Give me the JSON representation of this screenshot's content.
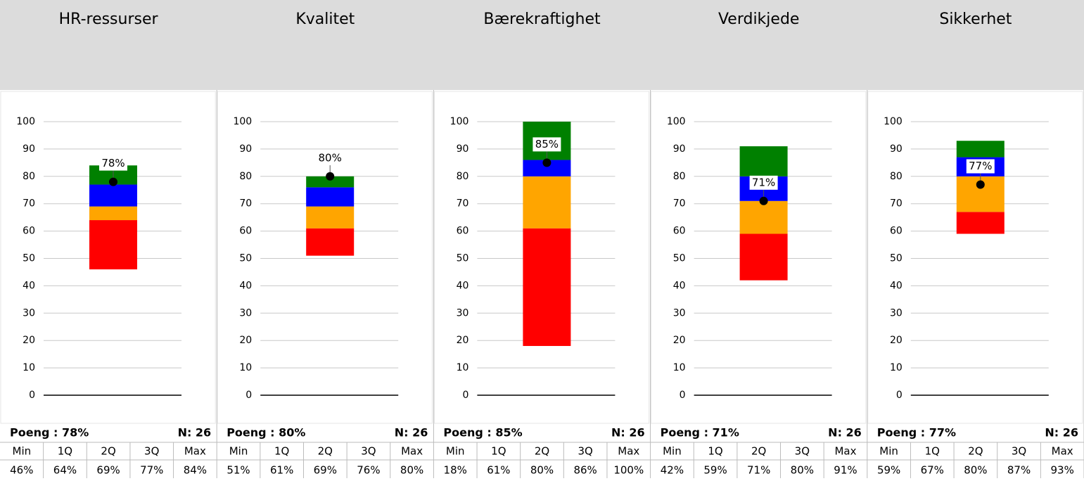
{
  "chart_data": [
    {
      "type": "box",
      "title": "HR-ressurser",
      "ylim": [
        0,
        100
      ],
      "yticks": [
        0,
        10,
        20,
        30,
        40,
        50,
        60,
        70,
        80,
        90,
        100
      ],
      "colors": [
        "#ff0000",
        "#ffa500",
        "#0000ff",
        "#008000"
      ],
      "stat_names": [
        "Min",
        "1Q",
        "2Q",
        "3Q",
        "Max"
      ],
      "values": [
        46,
        64,
        69,
        77,
        84
      ],
      "value_labels": [
        "46%",
        "64%",
        "69%",
        "77%",
        "84%"
      ],
      "score": 78,
      "score_label": "78%",
      "footer_score": "Poeng : 78%",
      "footer_n": "N: 26"
    },
    {
      "type": "box",
      "title": "Kvalitet",
      "ylim": [
        0,
        100
      ],
      "yticks": [
        0,
        10,
        20,
        30,
        40,
        50,
        60,
        70,
        80,
        90,
        100
      ],
      "colors": [
        "#ff0000",
        "#ffa500",
        "#0000ff",
        "#008000"
      ],
      "stat_names": [
        "Min",
        "1Q",
        "2Q",
        "3Q",
        "Max"
      ],
      "values": [
        51,
        61,
        69,
        76,
        80
      ],
      "value_labels": [
        "51%",
        "61%",
        "69%",
        "76%",
        "80%"
      ],
      "score": 80,
      "score_label": "80%",
      "footer_score": "Poeng : 80%",
      "footer_n": "N: 26"
    },
    {
      "type": "box",
      "title": "Bærekraftighet",
      "ylim": [
        0,
        100
      ],
      "yticks": [
        0,
        10,
        20,
        30,
        40,
        50,
        60,
        70,
        80,
        90,
        100
      ],
      "colors": [
        "#ff0000",
        "#ffa500",
        "#0000ff",
        "#008000"
      ],
      "stat_names": [
        "Min",
        "1Q",
        "2Q",
        "3Q",
        "Max"
      ],
      "values": [
        18,
        61,
        80,
        86,
        100
      ],
      "value_labels": [
        "18%",
        "61%",
        "80%",
        "86%",
        "100%"
      ],
      "score": 85,
      "score_label": "85%",
      "footer_score": "Poeng : 85%",
      "footer_n": "N: 26"
    },
    {
      "type": "box",
      "title": "Verdikjede",
      "ylim": [
        0,
        100
      ],
      "yticks": [
        0,
        10,
        20,
        30,
        40,
        50,
        60,
        70,
        80,
        90,
        100
      ],
      "colors": [
        "#ff0000",
        "#ffa500",
        "#0000ff",
        "#008000"
      ],
      "stat_names": [
        "Min",
        "1Q",
        "2Q",
        "3Q",
        "Max"
      ],
      "values": [
        42,
        59,
        71,
        80,
        91
      ],
      "value_labels": [
        "42%",
        "59%",
        "71%",
        "80%",
        "91%"
      ],
      "score": 71,
      "score_label": "71%",
      "footer_score": "Poeng : 71%",
      "footer_n": "N: 26"
    },
    {
      "type": "box",
      "title": "Sikkerhet",
      "ylim": [
        0,
        100
      ],
      "yticks": [
        0,
        10,
        20,
        30,
        40,
        50,
        60,
        70,
        80,
        90,
        100
      ],
      "colors": [
        "#ff0000",
        "#ffa500",
        "#0000ff",
        "#008000"
      ],
      "stat_names": [
        "Min",
        "1Q",
        "2Q",
        "3Q",
        "Max"
      ],
      "values": [
        59,
        67,
        80,
        87,
        93
      ],
      "value_labels": [
        "59%",
        "67%",
        "80%",
        "87%",
        "93%"
      ],
      "score": 77,
      "score_label": "77%",
      "footer_score": "Poeng : 77%",
      "footer_n": "N: 26"
    }
  ]
}
